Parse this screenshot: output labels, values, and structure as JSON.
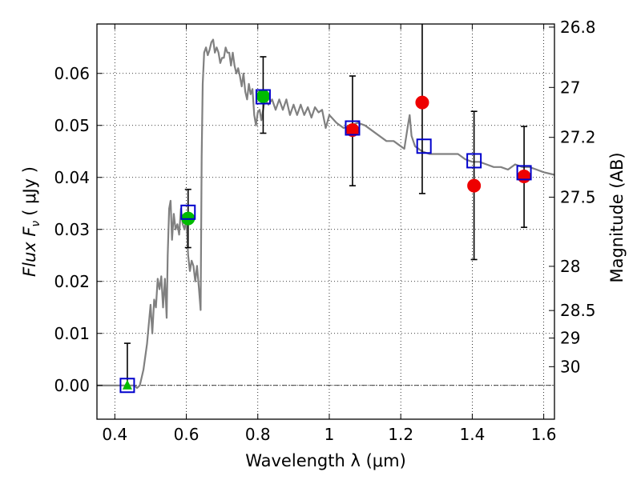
{
  "chart_data": {
    "type": "scatter",
    "title": "",
    "xlabel": "Wavelength  λ (μm)",
    "ylabel": "Flux  F",
    "ylabel_sub": "ν",
    "ylabel_unit": "( μJy )",
    "y2label": "Magnitude (AB)",
    "xlim": [
      0.35,
      1.63
    ],
    "ylim": [
      -0.0065,
      0.0695
    ],
    "x_ticks": [
      0.4,
      0.6,
      0.8,
      1.0,
      1.2,
      1.4,
      1.6
    ],
    "x_tick_labels": [
      "0.4",
      "0.6",
      "0.8",
      "1",
      "1.2",
      "1.4",
      "1.6"
    ],
    "y_ticks": [
      0.0,
      0.01,
      0.02,
      0.03,
      0.04,
      0.05,
      0.06
    ],
    "y_tick_labels": [
      "0.00",
      "0.01",
      "0.02",
      "0.03",
      "0.04",
      "0.05",
      "0.06"
    ],
    "y2_ticks": [
      {
        "label": "26.8",
        "flux": 0.0689
      },
      {
        "label": "27",
        "flux": 0.0573
      },
      {
        "label": "27.2",
        "flux": 0.0477
      },
      {
        "label": "27.5",
        "flux": 0.0362
      },
      {
        "label": "28",
        "flux": 0.0229
      },
      {
        "label": "28.5",
        "flux": 0.0144
      },
      {
        "label": "29",
        "flux": 0.0091
      },
      {
        "label": "30",
        "flux": 0.0036
      }
    ],
    "grid": true,
    "zero_line": true,
    "colors": {
      "model": "#808080",
      "model_points": "#0000cc",
      "detections_green": "#00bb00",
      "detections_red": "#ee0000",
      "error_bars": "#000000"
    },
    "series": [
      {
        "marker": "line",
        "x": [
          0.35,
          0.455,
          0.462,
          0.47,
          0.48,
          0.49,
          0.5,
          0.505,
          0.51,
          0.515,
          0.52,
          0.525,
          0.53,
          0.535,
          0.54,
          0.545,
          0.548,
          0.552,
          0.556,
          0.56,
          0.565,
          0.57,
          0.575,
          0.58,
          0.585,
          0.59,
          0.595,
          0.6,
          0.605,
          0.61,
          0.615,
          0.62,
          0.625,
          0.63,
          0.635,
          0.64,
          0.643,
          0.646,
          0.65,
          0.655,
          0.66,
          0.665,
          0.67,
          0.675,
          0.68,
          0.685,
          0.69,
          0.695,
          0.7,
          0.705,
          0.71,
          0.715,
          0.72,
          0.725,
          0.73,
          0.735,
          0.74,
          0.745,
          0.75,
          0.755,
          0.76,
          0.765,
          0.77,
          0.775,
          0.78,
          0.785,
          0.79,
          0.795,
          0.8,
          0.805,
          0.81,
          0.815,
          0.82,
          0.83,
          0.84,
          0.85,
          0.86,
          0.87,
          0.88,
          0.89,
          0.9,
          0.91,
          0.92,
          0.93,
          0.94,
          0.95,
          0.96,
          0.97,
          0.98,
          0.99,
          1.0,
          1.02,
          1.04,
          1.06,
          1.08,
          1.1,
          1.12,
          1.14,
          1.16,
          1.18,
          1.2,
          1.21,
          1.22,
          1.225,
          1.23,
          1.24,
          1.26,
          1.28,
          1.3,
          1.32,
          1.34,
          1.36,
          1.38,
          1.4,
          1.42,
          1.44,
          1.46,
          1.48,
          1.5,
          1.52,
          1.54,
          1.56,
          1.58,
          1.6,
          1.63
        ],
        "y": [
          0.0,
          0.0,
          -0.0005,
          0.0,
          0.003,
          0.008,
          0.0155,
          0.01,
          0.0165,
          0.015,
          0.0205,
          0.0185,
          0.021,
          0.015,
          0.0205,
          0.013,
          0.025,
          0.034,
          0.0355,
          0.028,
          0.033,
          0.03,
          0.031,
          0.029,
          0.034,
          0.031,
          0.03,
          0.032,
          0.025,
          0.022,
          0.024,
          0.023,
          0.02,
          0.023,
          0.019,
          0.0145,
          0.044,
          0.058,
          0.064,
          0.065,
          0.0635,
          0.0645,
          0.066,
          0.0665,
          0.064,
          0.065,
          0.064,
          0.062,
          0.063,
          0.063,
          0.065,
          0.064,
          0.064,
          0.0615,
          0.064,
          0.0615,
          0.06,
          0.061,
          0.0595,
          0.0575,
          0.06,
          0.0565,
          0.055,
          0.058,
          0.056,
          0.057,
          0.052,
          0.05,
          0.0525,
          0.053,
          0.051,
          0.053,
          0.055,
          0.054,
          0.055,
          0.053,
          0.055,
          0.053,
          0.055,
          0.052,
          0.054,
          0.052,
          0.054,
          0.052,
          0.0535,
          0.0515,
          0.0535,
          0.0525,
          0.053,
          0.0495,
          0.052,
          0.0505,
          0.0495,
          0.05,
          0.0505,
          0.05,
          0.049,
          0.048,
          0.047,
          0.047,
          0.046,
          0.0455,
          0.05,
          0.052,
          0.048,
          0.046,
          0.045,
          0.0445,
          0.0445,
          0.0445,
          0.0445,
          0.0445,
          0.0435,
          0.043,
          0.043,
          0.0425,
          0.042,
          0.042,
          0.0415,
          0.0425,
          0.042,
          0.042,
          0.0415,
          0.041,
          0.0405
        ]
      },
      {
        "marker": "open-square",
        "x": [
          0.435,
          0.605,
          0.815,
          1.065,
          1.265,
          1.405,
          1.545
        ],
        "y": [
          0.0,
          0.0333,
          0.0555,
          0.0495,
          0.046,
          0.0432,
          0.0409
        ]
      },
      {
        "marker": "filled-circle",
        "x": [
          0.605,
          0.815
        ],
        "y": [
          0.0321,
          0.0556
        ]
      },
      {
        "marker": "filled-triangle",
        "x": [
          0.435
        ],
        "y": [
          0.0
        ]
      },
      {
        "marker": "filled-circle",
        "x": [
          1.065,
          1.26,
          1.405,
          1.545
        ],
        "y": [
          0.0491,
          0.0544,
          0.0384,
          0.0402
        ]
      }
    ],
    "error_bars": [
      {
        "x": 0.435,
        "low": -0.0005,
        "high": 0.0081
      },
      {
        "x": 0.605,
        "low": 0.0265,
        "high": 0.0377
      },
      {
        "x": 0.815,
        "low": 0.0485,
        "high": 0.0632
      },
      {
        "x": 1.065,
        "low": 0.0384,
        "high": 0.0595
      },
      {
        "x": 1.26,
        "low": 0.0369,
        "high": 0.0695
      },
      {
        "x": 1.405,
        "low": 0.0242,
        "high": 0.0527
      },
      {
        "x": 1.545,
        "low": 0.0304,
        "high": 0.0498
      }
    ]
  }
}
